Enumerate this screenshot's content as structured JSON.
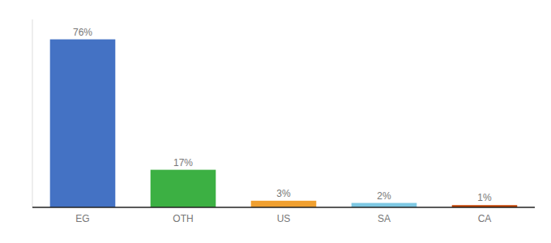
{
  "chart_data": {
    "type": "bar",
    "categories": [
      "EG",
      "OTH",
      "US",
      "SA",
      "CA"
    ],
    "values": [
      76,
      17,
      3,
      2,
      1
    ],
    "value_labels": [
      "76%",
      "17%",
      "3%",
      "2%",
      "1%"
    ],
    "colors": [
      "#4472c4",
      "#3cb043",
      "#f0a030",
      "#7ec8e3",
      "#c04000"
    ],
    "ylim": [
      0,
      85
    ],
    "data_labels": true,
    "tick_labels": "x",
    "grid": false
  }
}
